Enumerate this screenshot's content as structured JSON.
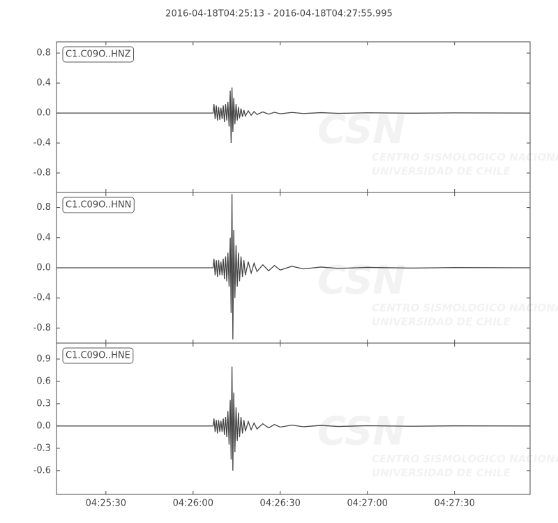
{
  "watermark": {
    "logo": "CSN",
    "line1": "CENTRO SISMOLOGICO NACIONAL",
    "line2": "UNIVERSIDAD DE CHILE"
  },
  "chart_data": [
    {
      "type": "line",
      "title": "2016-04-18T04:25:13  -  2016-04-18T04:27:55.995",
      "xlim": [
        15913,
        16076
      ],
      "ylim": [
        -1.06,
        0.95
      ],
      "yticks": [
        -0.8,
        -0.4,
        {
          "value": 0,
          "label": "0.0"
        },
        0.4,
        0.8
      ],
      "x": [
        15913,
        15966.9,
        15967.2,
        15967.6,
        15968.0,
        15968.4,
        15968.8,
        15969.2,
        15969.6,
        15970.0,
        15970.4,
        15970.8,
        15971.2,
        15971.6,
        15972.0,
        15972.4,
        15972.8,
        15973.1,
        15973.4,
        15973.7,
        15974.0,
        15974.4,
        15974.8,
        15975.2,
        15975.6,
        15976.0,
        15976.5,
        15977.0,
        15977.5,
        15978.0,
        15979.0,
        15980.0,
        15981.0,
        15982.0,
        15984.0,
        15986.0,
        15988.0,
        15990.0,
        15994.0,
        15998.0,
        16004.0,
        16010.0,
        16020.0,
        16035.0,
        16050.0,
        16076.0
      ],
      "series": [
        {
          "name": "C1.C09O..HNZ",
          "color": "#444444",
          "values": [
            0,
            0,
            0.12,
            -0.08,
            0.1,
            -0.1,
            0.08,
            -0.09,
            0.07,
            -0.08,
            0.1,
            -0.12,
            0.12,
            -0.1,
            0.15,
            -0.18,
            0.3,
            -0.4,
            0.34,
            -0.25,
            0.2,
            -0.15,
            0.12,
            -0.1,
            0.08,
            -0.07,
            0.06,
            -0.05,
            0.04,
            -0.04,
            0.03,
            -0.03,
            0.02,
            -0.02,
            0.015,
            -0.015,
            0.01,
            -0.01,
            0.008,
            -0.006,
            0.005,
            -0.004,
            0.003,
            -0.002,
            0.002,
            0
          ]
        }
      ]
    },
    {
      "type": "line",
      "xlim": [
        15913,
        16076
      ],
      "ylim": [
        -1.0,
        1.0
      ],
      "yticks": [
        -0.8,
        -0.4,
        {
          "value": 0,
          "label": "0.0"
        },
        0.4,
        0.8
      ],
      "x": [
        15913,
        15966.9,
        15967.2,
        15967.6,
        15968.0,
        15968.4,
        15968.8,
        15969.2,
        15969.6,
        15970.0,
        15970.4,
        15970.8,
        15971.2,
        15971.6,
        15972.0,
        15972.4,
        15972.8,
        15973.1,
        15973.4,
        15973.7,
        15974.0,
        15974.4,
        15974.8,
        15975.2,
        15975.6,
        15976.0,
        15976.5,
        15977.0,
        15977.5,
        15978.0,
        15979.0,
        15980.0,
        15981.0,
        15982.0,
        15984.0,
        15986.0,
        15988.0,
        15990.0,
        15994.0,
        15998.0,
        16004.0,
        16010.0,
        16020.0,
        16035.0,
        16050.0,
        16076.0
      ],
      "series": [
        {
          "name": "C1.C09O..HNN",
          "color": "#444444",
          "values": [
            0,
            0,
            0.12,
            -0.1,
            0.1,
            -0.12,
            0.1,
            -0.1,
            0.08,
            -0.1,
            0.12,
            -0.15,
            0.15,
            -0.18,
            0.2,
            -0.25,
            0.4,
            -0.6,
            0.98,
            -0.95,
            0.5,
            -0.4,
            0.3,
            -0.25,
            0.2,
            -0.18,
            0.15,
            -0.12,
            0.1,
            -0.1,
            0.08,
            -0.07,
            0.06,
            -0.05,
            0.04,
            -0.04,
            0.03,
            -0.03,
            0.02,
            -0.015,
            0.01,
            -0.008,
            0.005,
            -0.004,
            0.003,
            0
          ]
        }
      ]
    },
    {
      "type": "line",
      "xlim": [
        15913,
        16076
      ],
      "ylim": [
        -0.92,
        1.115
      ],
      "yticks": [
        -0.6,
        -0.3,
        {
          "value": 0,
          "label": "0.0"
        },
        0.3,
        0.6,
        0.9
      ],
      "xticks": [
        {
          "value": 15930,
          "label": "04:25:30"
        },
        {
          "value": 15960,
          "label": "04:26:00"
        },
        {
          "value": 15990,
          "label": "04:26:30"
        },
        {
          "value": 16020,
          "label": "04:27:00"
        },
        {
          "value": 16050,
          "label": "04:27:30"
        }
      ],
      "x": [
        15913,
        15966.9,
        15967.2,
        15967.6,
        15968.0,
        15968.4,
        15968.8,
        15969.2,
        15969.6,
        15970.0,
        15970.4,
        15970.8,
        15971.2,
        15971.6,
        15972.0,
        15972.4,
        15972.8,
        15973.1,
        15973.4,
        15973.7,
        15974.0,
        15974.4,
        15974.8,
        15975.2,
        15975.6,
        15976.0,
        15976.5,
        15977.0,
        15977.5,
        15978.0,
        15979.0,
        15980.0,
        15981.0,
        15982.0,
        15984.0,
        15986.0,
        15988.0,
        15990.0,
        15994.0,
        15998.0,
        16004.0,
        16010.0,
        16020.0,
        16035.0,
        16050.0,
        16076.0
      ],
      "series": [
        {
          "name": "C1.C09O..HNE",
          "color": "#444444",
          "values": [
            0,
            0,
            0.1,
            -0.08,
            0.08,
            -0.1,
            0.08,
            -0.08,
            0.07,
            -0.08,
            0.1,
            -0.12,
            0.12,
            -0.15,
            0.2,
            -0.25,
            0.35,
            -0.45,
            0.8,
            -0.6,
            0.45,
            -0.35,
            0.25,
            -0.2,
            0.18,
            -0.15,
            0.12,
            -0.1,
            0.08,
            -0.07,
            0.06,
            -0.05,
            0.04,
            -0.04,
            0.03,
            -0.025,
            0.02,
            -0.015,
            0.012,
            -0.01,
            0.008,
            -0.006,
            0.004,
            -0.003,
            0.002,
            0
          ]
        }
      ]
    }
  ]
}
